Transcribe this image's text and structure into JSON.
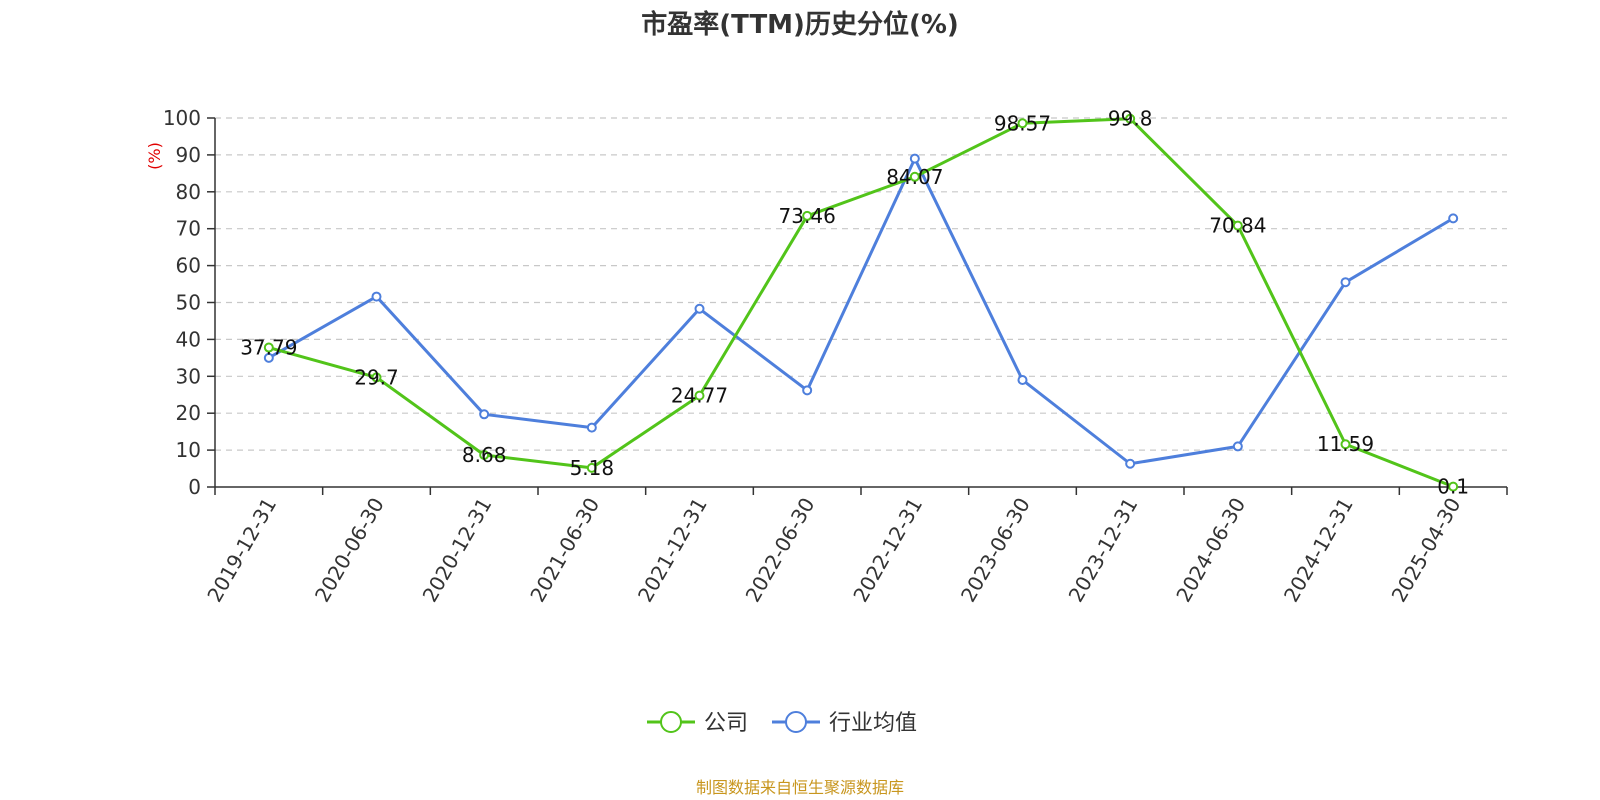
{
  "chart_data": {
    "type": "line",
    "title": "市盈率(TTM)历史分位(%)",
    "ylabel": "(%)",
    "ylim": [
      0,
      100
    ],
    "yticks": [
      0,
      10,
      20,
      30,
      40,
      50,
      60,
      70,
      80,
      90,
      100
    ],
    "categories": [
      "2019-12-31",
      "2020-06-30",
      "2020-12-31",
      "2021-06-30",
      "2021-12-31",
      "2022-06-30",
      "2022-12-31",
      "2023-06-30",
      "2023-12-31",
      "2024-06-30",
      "2024-12-31",
      "2025-04-30"
    ],
    "series": [
      {
        "name": "公司",
        "color": "#52c41a",
        "values": [
          37.79,
          29.7,
          8.68,
          5.18,
          24.77,
          73.46,
          84.07,
          98.57,
          99.8,
          70.84,
          11.59,
          0.1
        ],
        "labels": [
          "37.79",
          "29.7",
          "8.68",
          "5.18",
          "24.77",
          "73.46",
          "84.07",
          "98.57",
          "99.8",
          "70.84",
          "11.59",
          "0.1"
        ]
      },
      {
        "name": "行业均值",
        "color": "#4e7fdc",
        "values": [
          35.0,
          51.6,
          19.7,
          16.1,
          48.3,
          26.2,
          89.0,
          29.0,
          6.3,
          11.0,
          55.5,
          72.8
        ]
      }
    ],
    "grid": true,
    "legend_position": "bottom-center",
    "source": "制图数据来自恒生聚源数据库",
    "source_color": "#c8961e",
    "ylabel_color": "#e00000"
  }
}
